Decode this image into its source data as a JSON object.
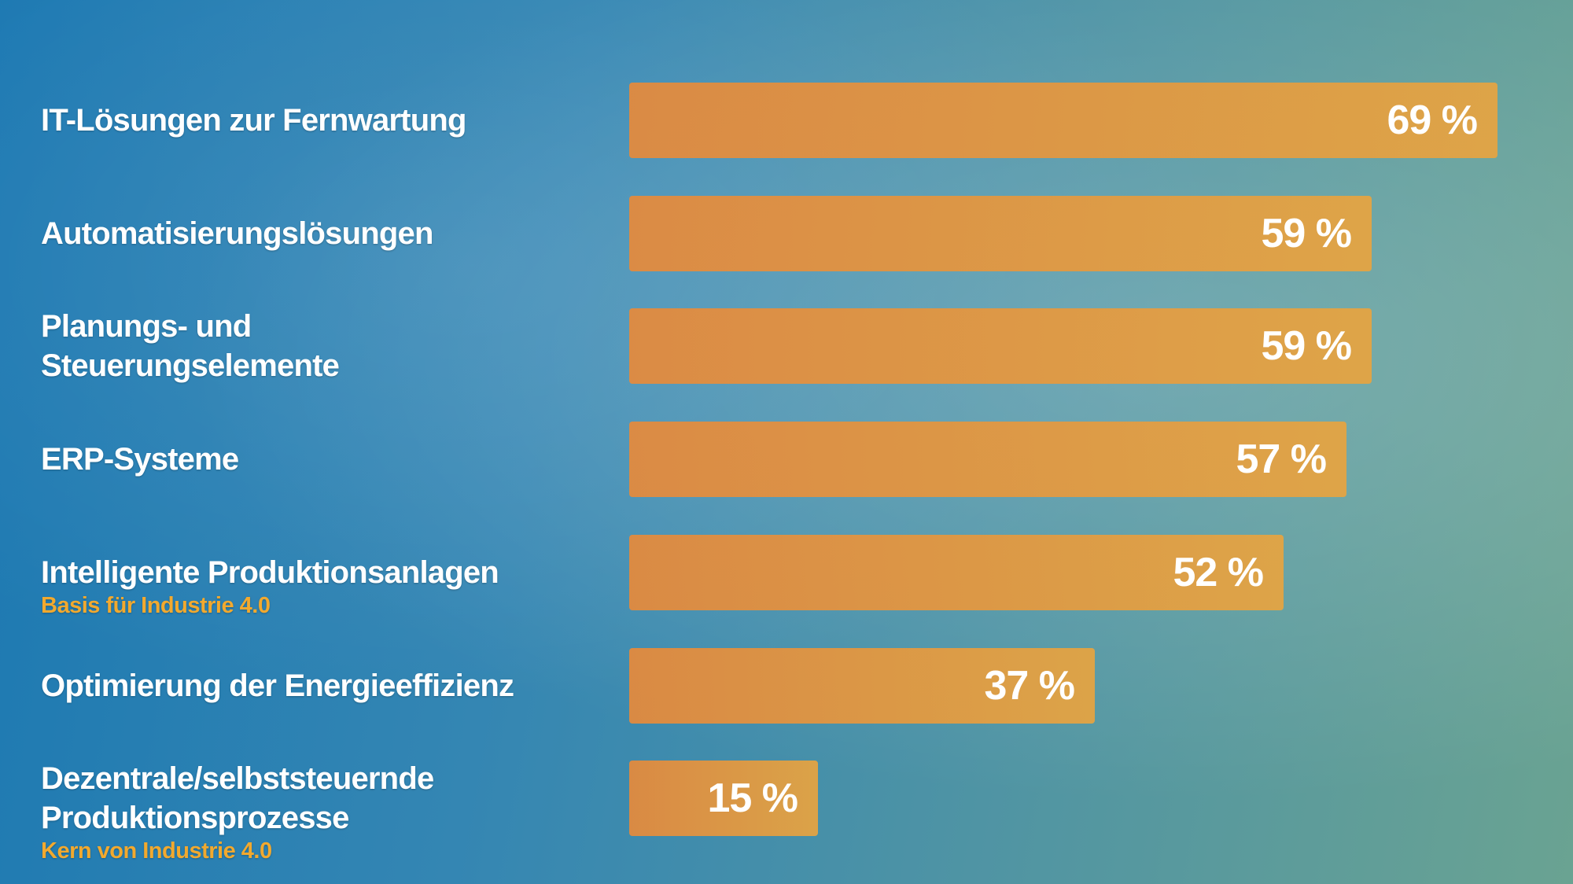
{
  "chart_data": {
    "type": "bar",
    "orientation": "horizontal",
    "categories": [
      "IT-Lösungen zur Fernwartung",
      "Automatisierungslösungen",
      "Planungs- und\nSteuerungselemente",
      "ERP-Systeme",
      "Intelligente Produktionsanlagen",
      "Optimierung der Energieeffizienz",
      "Dezentrale/selbststeuernde\nProduktionsprozesse"
    ],
    "notes": [
      null,
      null,
      null,
      null,
      "Basis für Industrie 4.0",
      null,
      "Kern von Industrie 4.0"
    ],
    "values": [
      69,
      59,
      59,
      57,
      52,
      37,
      15
    ],
    "value_labels": [
      "69 %",
      "59 %",
      "59 %",
      "57 %",
      "52 %",
      "37 %",
      "15 %"
    ],
    "color": "#e58a3c"
  }
}
